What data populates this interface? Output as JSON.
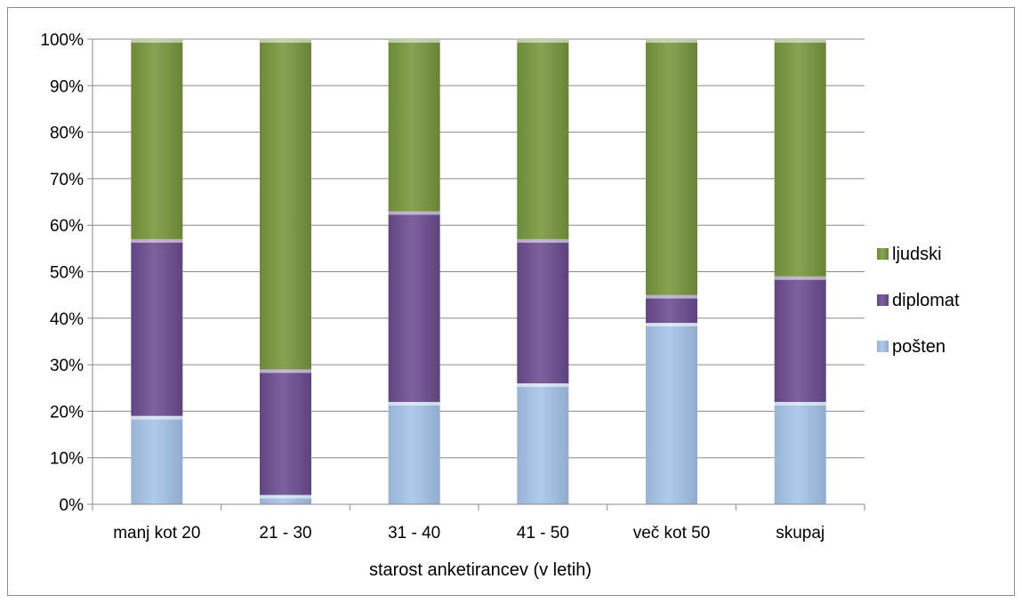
{
  "chart_data": {
    "type": "bar",
    "stacked": true,
    "percent_stacked": true,
    "categories": [
      "manj kot 20",
      "21 - 30",
      "31 - 40",
      "41 - 50",
      "več kot 50",
      "skupaj"
    ],
    "series": [
      {
        "name": "pošten",
        "values": [
          19,
          2,
          22,
          26,
          39,
          22
        ],
        "color": "#a5c3e8"
      },
      {
        "name": "diplomat",
        "values": [
          38,
          27,
          41,
          31,
          6,
          27
        ],
        "color": "#6b4c8f"
      },
      {
        "name": "ljudski",
        "values": [
          43,
          71,
          37,
          43,
          55,
          51
        ],
        "color": "#77963b"
      }
    ],
    "title": "",
    "xlabel": "starost anketirancev (v letih)",
    "ylabel": "",
    "ylim": [
      0,
      100
    ],
    "yticks": [
      "0%",
      "10%",
      "20%",
      "30%",
      "40%",
      "50%",
      "60%",
      "70%",
      "80%",
      "90%",
      "100%"
    ],
    "grid": true,
    "legend_position": "right",
    "legend_order": [
      "ljudski",
      "diplomat",
      "pošten"
    ]
  }
}
